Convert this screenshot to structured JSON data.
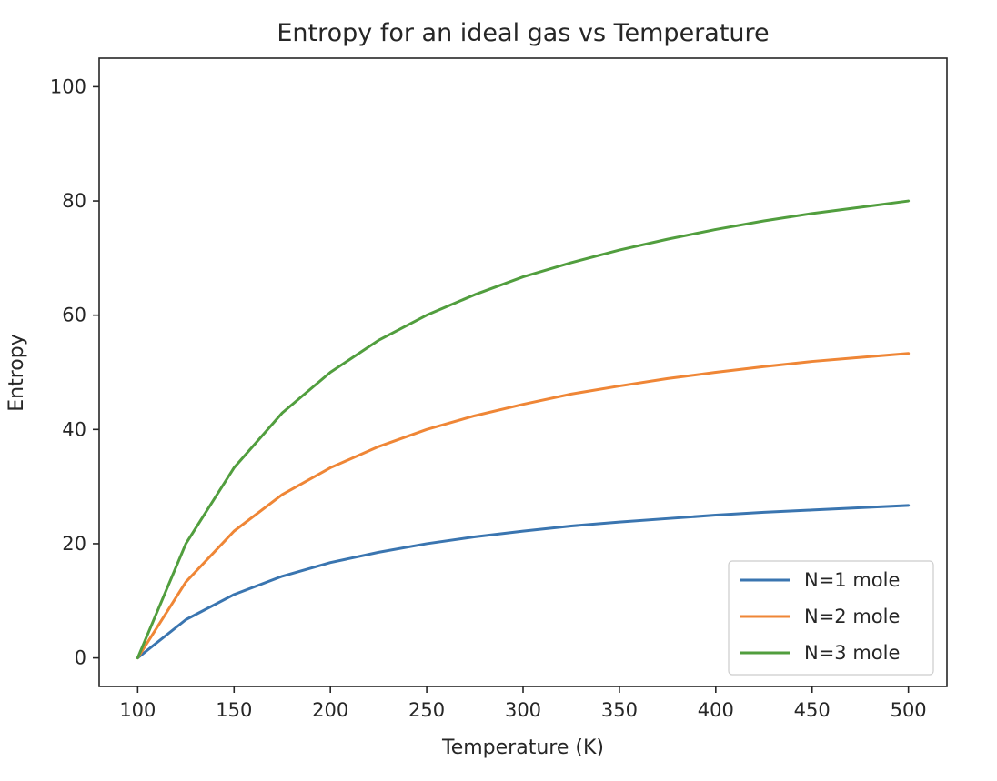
{
  "chart_data": {
    "type": "line",
    "title": "Entropy for an ideal gas vs Temperature",
    "xlabel": "Temperature (K)",
    "ylabel": "Entropy",
    "xlim": [
      80,
      520
    ],
    "ylim": [
      -5,
      105
    ],
    "xticks": [
      100,
      150,
      200,
      250,
      300,
      350,
      400,
      450,
      500
    ],
    "yticks": [
      0,
      20,
      40,
      60,
      80,
      100
    ],
    "grid": false,
    "legend_position": "lower-right",
    "x": [
      100,
      125,
      150,
      175,
      200,
      225,
      250,
      275,
      300,
      325,
      350,
      375,
      400,
      425,
      450,
      475,
      500
    ],
    "series": [
      {
        "name": "N=1 mole",
        "color": "#3a75b0",
        "values": [
          0.0,
          6.7,
          11.1,
          14.3,
          16.7,
          18.5,
          20.0,
          21.2,
          22.2,
          23.1,
          23.8,
          24.4,
          25.0,
          25.5,
          25.9,
          26.3,
          26.7
        ]
      },
      {
        "name": "N=2 mole",
        "color": "#ef8636",
        "values": [
          0.0,
          13.3,
          22.2,
          28.6,
          33.3,
          37.0,
          40.0,
          42.4,
          44.4,
          46.2,
          47.6,
          48.9,
          50.0,
          51.0,
          51.9,
          52.6,
          53.3
        ]
      },
      {
        "name": "N=3 mole",
        "color": "#519e3e",
        "values": [
          0.0,
          20.0,
          33.3,
          42.9,
          50.0,
          55.6,
          60.0,
          63.6,
          66.7,
          69.2,
          71.4,
          73.3,
          75.0,
          76.5,
          77.8,
          78.9,
          80.0
        ]
      }
    ]
  }
}
